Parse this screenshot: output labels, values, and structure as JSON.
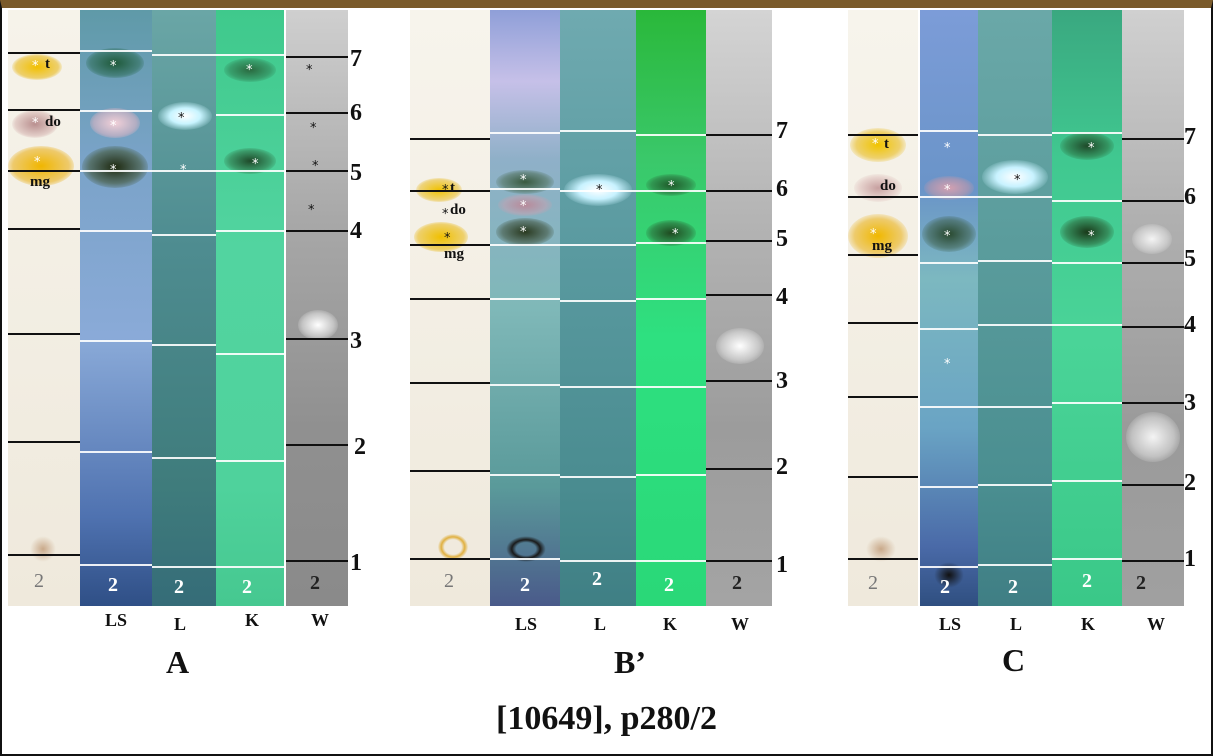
{
  "caption": "[10649], p280/2",
  "panels": [
    {
      "label": "A",
      "lanes": [
        "LS",
        "L",
        "K",
        "W"
      ],
      "lane_numbers": [
        "2",
        "2",
        "2",
        "2"
      ],
      "spot_labels": [
        "t",
        "do",
        "mg"
      ],
      "markers": [
        "7",
        "6",
        "5",
        "4",
        "3",
        "2",
        "1"
      ]
    },
    {
      "label": "B’",
      "lanes": [
        "LS",
        "L",
        "K",
        "W"
      ],
      "lane_numbers": [
        "2",
        "2",
        "2",
        "2"
      ],
      "spot_labels": [
        "t",
        "do",
        "mg"
      ],
      "markers": [
        "7",
        "6",
        "5",
        "4",
        "3",
        "2",
        "1"
      ]
    },
    {
      "label": "C",
      "lanes": [
        "LS",
        "L",
        "K",
        "W"
      ],
      "lane_numbers": [
        "2",
        "2",
        "2",
        "2"
      ],
      "spot_labels": [
        "t",
        "do",
        "mg"
      ],
      "markers": [
        "7",
        "6",
        "5",
        "4",
        "3",
        "2",
        "1"
      ]
    }
  ],
  "colors": {
    "paper": "#f3efe4",
    "ls_lane": "#6f8ec8",
    "l_lane": "#4f8f8f",
    "k_lane": "#49d79a",
    "w_lane": "#9a9a9a",
    "yellow_spot": "#e8b400",
    "pink_spot": "#c79898"
  }
}
